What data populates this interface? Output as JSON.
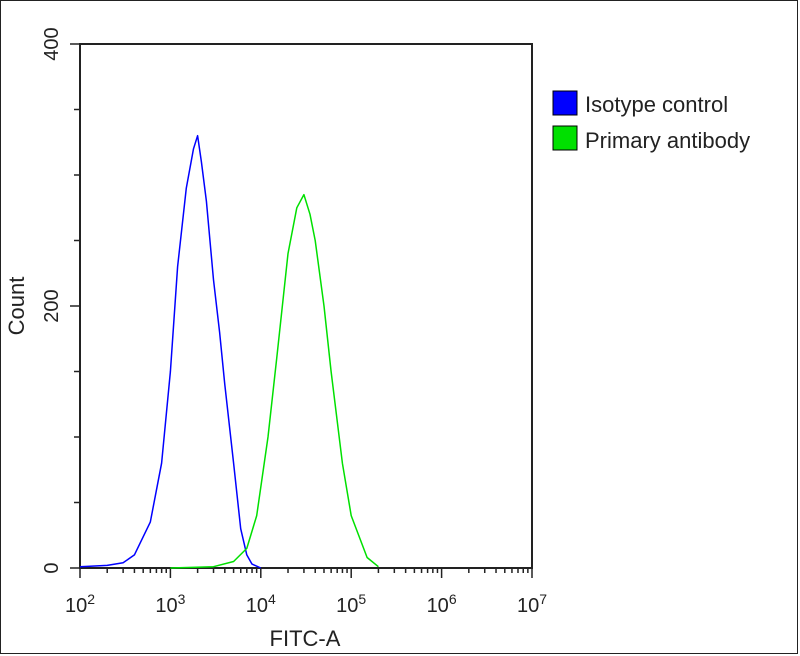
{
  "chart_data": {
    "type": "histogram",
    "xlabel": "FITC-A",
    "ylabel": "Count",
    "x_scale": "log",
    "xlim": [
      100,
      10000000
    ],
    "ylim": [
      0,
      400
    ],
    "x_ticks": [
      {
        "value": 100,
        "base": "10",
        "exp": "2"
      },
      {
        "value": 1000,
        "base": "10",
        "exp": "3"
      },
      {
        "value": 10000,
        "base": "10",
        "exp": "4"
      },
      {
        "value": 100000,
        "base": "10",
        "exp": "5"
      },
      {
        "value": 1000000,
        "base": "10",
        "exp": "6"
      },
      {
        "value": 10000000,
        "base": "10",
        "exp": "7"
      }
    ],
    "y_ticks": [
      "0",
      "200",
      "400"
    ],
    "legend_position": "right, outside plot",
    "series": [
      {
        "name": "Isotype control",
        "color": "#0000ff",
        "x": [
          100,
          200,
          300,
          400,
          600,
          800,
          1000,
          1200,
          1500,
          1800,
          2000,
          2200,
          2500,
          3000,
          3500,
          4000,
          5000,
          6000,
          7000,
          8000,
          10000
        ],
        "y": [
          1,
          2,
          4,
          10,
          35,
          80,
          150,
          230,
          290,
          320,
          330,
          310,
          280,
          220,
          180,
          140,
          80,
          30,
          10,
          3,
          0
        ]
      },
      {
        "name": "Primary antibody",
        "color": "#00e000",
        "x": [
          1000,
          3000,
          5000,
          7000,
          9000,
          12000,
          15000,
          20000,
          25000,
          30000,
          35000,
          40000,
          50000,
          60000,
          80000,
          100000,
          150000,
          200000
        ],
        "y": [
          0,
          1,
          5,
          15,
          40,
          100,
          160,
          240,
          275,
          285,
          270,
          250,
          200,
          150,
          80,
          40,
          8,
          1
        ]
      }
    ]
  }
}
